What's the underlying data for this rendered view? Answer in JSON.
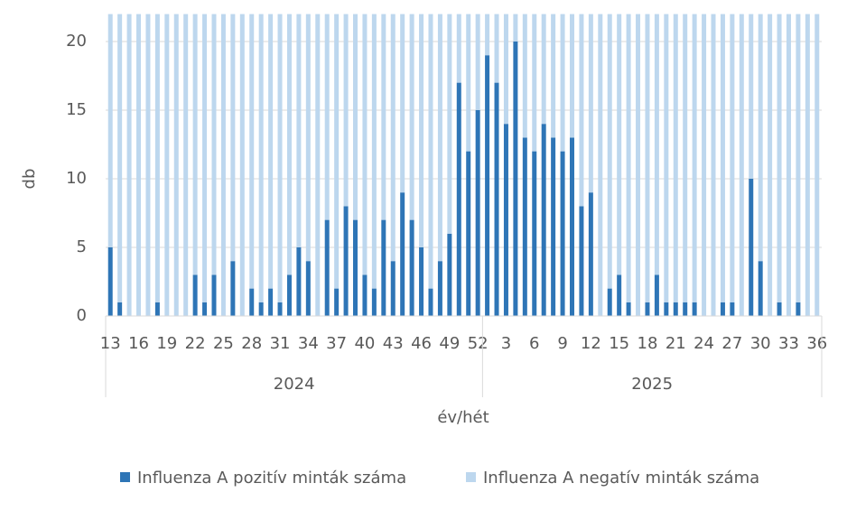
{
  "chart_data": {
    "type": "stacked-bar",
    "y_label": "db",
    "x_label": "év/hét",
    "groups": [
      {
        "name": "2024",
        "weeks": [
          "13",
          null,
          null,
          "16",
          null,
          null,
          "19",
          null,
          null,
          "22",
          null,
          null,
          "25",
          null,
          null,
          "28",
          null,
          null,
          "31",
          null,
          null,
          "34",
          null,
          null,
          "37",
          null,
          null,
          "40",
          null,
          null,
          "43",
          null,
          null,
          "46",
          null,
          null,
          "49",
          null,
          null,
          "52"
        ]
      },
      {
        "name": "2025",
        "weeks": [
          null,
          null,
          "3",
          null,
          null,
          "6",
          null,
          null,
          "9",
          null,
          null,
          "12",
          null,
          null,
          "15",
          null,
          null,
          "18",
          null,
          null,
          "21",
          null,
          null,
          "24",
          null,
          null,
          "27",
          null,
          null,
          "30",
          null,
          null,
          "33",
          null,
          null,
          "36"
        ]
      }
    ],
    "series": [
      {
        "name": "Influenza A pozitív minták száma",
        "color": "#2e75b6",
        "values": [
          5,
          1,
          0,
          0,
          0,
          1,
          0,
          0,
          0,
          3,
          1,
          3,
          0,
          4,
          0,
          2,
          1,
          2,
          1,
          3,
          5,
          4,
          0,
          7,
          2,
          8,
          7,
          3,
          2,
          7,
          4,
          9,
          7,
          5,
          2,
          4,
          6,
          17,
          12,
          15,
          19,
          17,
          14,
          20,
          13,
          12,
          14,
          13,
          12,
          13,
          8,
          9,
          0,
          2,
          3,
          1,
          0,
          1,
          3,
          1,
          1,
          1,
          1,
          0,
          0,
          1,
          1,
          0,
          10,
          4,
          0,
          1,
          0,
          1,
          0,
          0
        ]
      },
      {
        "name": "Influenza A negatív minták száma",
        "color": "#bdd7ee",
        "values": [
          17,
          21,
          22,
          22,
          22,
          21,
          22,
          22,
          22,
          19,
          21,
          19,
          22,
          18,
          22,
          20,
          21,
          20,
          21,
          19,
          17,
          18,
          22,
          15,
          20,
          14,
          15,
          19,
          20,
          15,
          18,
          13,
          15,
          17,
          20,
          18,
          16,
          5,
          10,
          7,
          3,
          5,
          8,
          2,
          9,
          10,
          8,
          9,
          10,
          9,
          14,
          13,
          22,
          20,
          19,
          21,
          22,
          21,
          19,
          21,
          21,
          21,
          21,
          22,
          22,
          21,
          21,
          22,
          12,
          18,
          22,
          21,
          22,
          21,
          22,
          22
        ]
      }
    ],
    "ylim": [
      0,
      22
    ],
    "yticks": [
      0,
      5,
      10,
      15,
      20
    ],
    "grid": true
  }
}
